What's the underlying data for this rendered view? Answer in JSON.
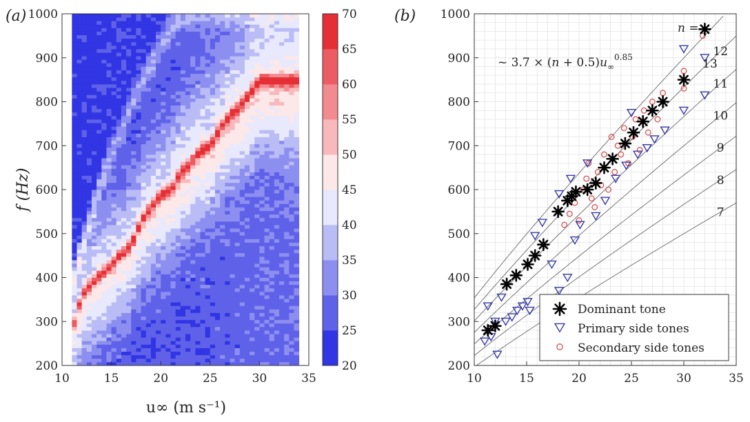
{
  "panel_a": {
    "label": "(a)",
    "xlabel": "u∞ (m s⁻¹)",
    "ylabel": "f (Hz)",
    "xticks": [
      "10",
      "15",
      "20",
      "25",
      "30",
      "35"
    ],
    "yticks": [
      "200",
      "300",
      "400",
      "500",
      "600",
      "700",
      "800",
      "900",
      "1000"
    ],
    "colorbar_ticks": [
      "20",
      "25",
      "30",
      "35",
      "40",
      "45",
      "50",
      "55",
      "60",
      "65",
      "70"
    ]
  },
  "panel_b": {
    "label": "(b)",
    "xlabel": "u∞ (m s⁻¹)",
    "xticks": [
      "10",
      "15",
      "20",
      "25",
      "30",
      "35"
    ],
    "yticks": [
      "200",
      "300",
      "400",
      "500",
      "600",
      "700",
      "800",
      "900",
      "1000"
    ],
    "formula": "~ 3.7 × (n + 0.5)u∞^0.85",
    "n_label": "n =",
    "legend": {
      "dominant": "Dominant tone",
      "primary": "Primary side tones",
      "secondary": "Secondary side tones"
    }
  },
  "chart_data": [
    {
      "type": "heatmap",
      "panel": "(a)",
      "xlabel": "u∞ (m s⁻¹)",
      "ylabel": "f (Hz)",
      "xlim": [
        10,
        35
      ],
      "ylim": [
        200,
        1000
      ],
      "data_xlim": [
        11,
        34
      ],
      "colorbar": {
        "range": [
          20,
          70
        ],
        "step": 5,
        "low_color": "#1a1ee0",
        "mid_color": "#ffffff",
        "high_color": "#e3171e"
      },
      "ridges": [
        {
          "name": "dominant",
          "level": 68,
          "x": [
            11,
            12,
            13,
            14,
            15,
            16,
            17,
            18,
            19,
            20,
            21,
            22,
            23,
            24,
            25,
            26,
            27,
            28,
            30
          ],
          "y": [
            280,
            360,
            390,
            410,
            430,
            455,
            475,
            530,
            560,
            590,
            600,
            640,
            660,
            690,
            700,
            740,
            770,
            790,
            850
          ]
        },
        {
          "name": "upper side band",
          "level": 34,
          "x": [
            11,
            14,
            17,
            20,
            22,
            24,
            26,
            28,
            30
          ],
          "y": [
            380,
            620,
            790,
            930,
            990,
            1000,
            1000,
            1000,
            1000
          ]
        }
      ]
    },
    {
      "type": "scatter",
      "panel": "(b)",
      "xlabel": "u∞ (m s⁻¹)",
      "ylabel": "f (Hz)",
      "xlim": [
        10,
        35
      ],
      "ylim": [
        200,
        1000
      ],
      "grid": true,
      "legend_position": "bottom-right",
      "series": [
        {
          "name": "Dominant tone",
          "marker": "asterisk",
          "color": "#000000",
          "x": [
            11.3,
            12.0,
            13.1,
            14.0,
            15.1,
            15.8,
            16.6,
            18.0,
            18.9,
            19.3,
            19.7,
            20.8,
            21.6,
            22.4,
            23.2,
            24.4,
            25.2,
            26.1,
            27.0,
            28.0,
            30.0,
            32.0
          ],
          "y": [
            280,
            290,
            385,
            405,
            430,
            450,
            475,
            550,
            575,
            585,
            595,
            600,
            615,
            650,
            670,
            705,
            730,
            755,
            780,
            800,
            850,
            965
          ]
        },
        {
          "name": "Primary side tones",
          "marker": "triangle-down",
          "color": "#3a3aa8",
          "x": [
            11.0,
            11.3,
            11.6,
            12.0,
            12.2,
            12.6,
            13.0,
            13.6,
            14.1,
            14.6,
            15.1,
            15.3,
            15.8,
            16.5,
            17.4,
            18.1,
            18.1,
            18.9,
            19.2,
            19.6,
            20.1,
            20.8,
            21.6,
            22.5,
            23.5,
            24.5,
            25.0,
            25.6,
            26.5,
            27.2,
            28.2,
            30.0,
            30.0,
            32.0,
            32.0
          ],
          "y": [
            255,
            335,
            265,
            300,
            225,
            355,
            300,
            310,
            325,
            335,
            345,
            325,
            495,
            525,
            430,
            590,
            370,
            400,
            625,
            485,
            520,
            660,
            540,
            575,
            625,
            655,
            775,
            680,
            695,
            715,
            735,
            780,
            920,
            815,
            900
          ]
        },
        {
          "name": "Secondary side tones",
          "marker": "circle",
          "color": "#d65050",
          "x": [
            18.6,
            19.1,
            19.6,
            20.0,
            20.4,
            20.7,
            20.9,
            21.2,
            21.5,
            21.8,
            22.1,
            22.4,
            22.8,
            23.1,
            23.4,
            23.7,
            24.0,
            24.3,
            24.7,
            25.1,
            25.4,
            25.8,
            26.2,
            26.6,
            27.0,
            27.5,
            28.0,
            30.0,
            30.0,
            31.8
          ],
          "y": [
            520,
            545,
            570,
            530,
            600,
            625,
            660,
            580,
            560,
            640,
            610,
            680,
            600,
            720,
            640,
            700,
            680,
            740,
            660,
            720,
            760,
            690,
            780,
            730,
            800,
            760,
            820,
            830,
            870,
            950
          ]
        }
      ],
      "fit_curves": {
        "formula": "~ 3.7 × (n + 0.5)u∞^0.85",
        "coefficient": 3.7,
        "exponent": 0.85,
        "n": [
          7,
          8,
          9,
          10,
          11,
          12,
          13
        ],
        "labels": [
          "7",
          "8",
          "9",
          "10",
          "11",
          "12",
          "13"
        ]
      }
    }
  ]
}
